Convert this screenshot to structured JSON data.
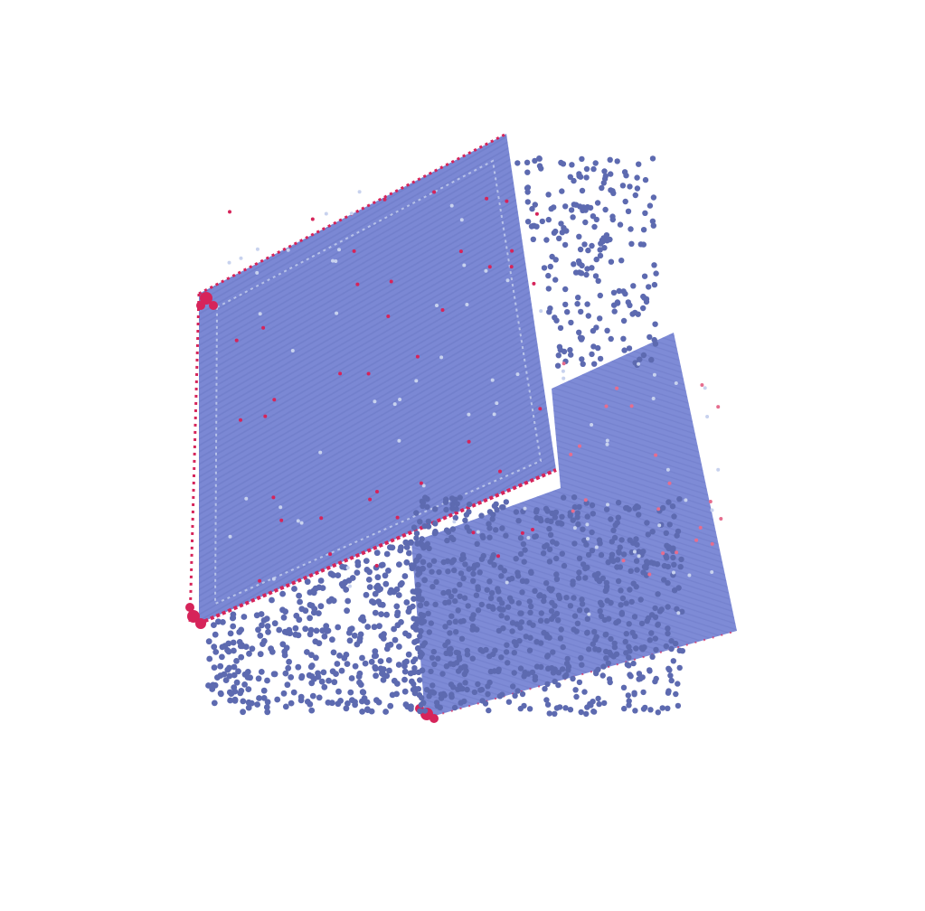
{
  "scene": {
    "background": "#ffffff",
    "subject": "atom-point-cloud-cube",
    "palette": {
      "bulk": "#7b88d4",
      "bulk_dark": "#5d6ab0",
      "bulk_light": "#9aa6e6",
      "highlight": "#c8d2ee",
      "defect": "#d6245a",
      "defect_light": "#e66d8e"
    }
  }
}
